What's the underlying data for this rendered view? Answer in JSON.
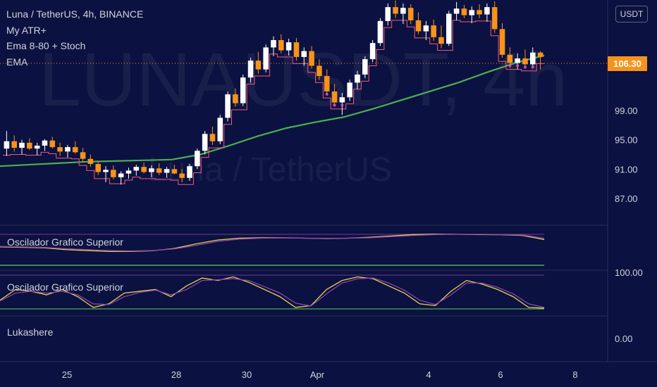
{
  "header": {
    "symbol_line": "Luna / TetherUS, 4h, BINANCE",
    "indicators": [
      "My ATR+",
      "Ema 8-80 + Stoch",
      "EMA"
    ],
    "currency": "USDT"
  },
  "watermark": {
    "ticker": "LUNAUSDT, 4h",
    "name": "Luna / TetherUS"
  },
  "price_tag": "106.30",
  "panes": {
    "osc1_label": "Oscilador Grafico Superior",
    "osc2_label": "Oscilador Grafico Superior",
    "pane3_label": "Lukashere"
  },
  "colors": {
    "background": "#0b1140",
    "bull": "#ffffff",
    "bear": "#f7931a",
    "ema": "#4caf50",
    "atr": "#f05a7e",
    "stoch_k": "#e8d44d",
    "stoch_d": "#8e44ad",
    "dots": "#c850c0"
  },
  "chart_data": [
    {
      "type": "candlestick",
      "title": "Luna / TetherUS, 4h, BINANCE",
      "x_ticks": [
        "25",
        "28",
        "30",
        "Apr",
        "4",
        "6",
        "8"
      ],
      "y_ticks": [
        "87.00",
        "91.00",
        "95.00",
        "99.00",
        "106.30"
      ],
      "ylim": [
        84,
        114
      ],
      "last_price": 106.3,
      "series": [
        {
          "name": "My ATR+",
          "kind": "stepped line"
        },
        {
          "name": "EMA",
          "kind": "line",
          "values": [
            91.4,
            91.6,
            91.8,
            92.0,
            92.1,
            92.2,
            92.3,
            93.0,
            94.2,
            95.5,
            96.6,
            97.4,
            98.1,
            99.2,
            100.4,
            101.6,
            102.8,
            104.2,
            105.5,
            106.5
          ]
        }
      ],
      "candles_ohlc": [
        [
          93.8,
          96.2,
          92.8,
          94.8
        ],
        [
          94.8,
          95.6,
          93.4,
          93.9
        ],
        [
          93.9,
          95.0,
          93.0,
          94.6
        ],
        [
          94.6,
          95.2,
          93.6,
          93.8
        ],
        [
          93.8,
          94.6,
          92.9,
          94.2
        ],
        [
          94.2,
          95.1,
          93.5,
          94.9
        ],
        [
          94.9,
          95.4,
          93.8,
          94.0
        ],
        [
          94.0,
          94.6,
          92.8,
          93.4
        ],
        [
          93.4,
          94.3,
          92.6,
          94.0
        ],
        [
          94.0,
          94.8,
          93.1,
          93.3
        ],
        [
          93.3,
          93.9,
          92.0,
          92.4
        ],
        [
          92.4,
          93.0,
          91.3,
          91.7
        ],
        [
          91.7,
          92.1,
          90.2,
          90.6
        ],
        [
          90.6,
          91.4,
          89.2,
          90.9
        ],
        [
          90.9,
          91.5,
          89.6,
          89.9
        ],
        [
          89.9,
          90.7,
          88.9,
          90.4
        ],
        [
          90.4,
          91.2,
          89.7,
          90.8
        ],
        [
          90.8,
          91.6,
          90.1,
          91.3
        ],
        [
          91.3,
          91.9,
          90.4,
          90.6
        ],
        [
          90.6,
          91.5,
          89.9,
          91.1
        ],
        [
          91.1,
          91.8,
          90.2,
          90.5
        ],
        [
          90.5,
          91.3,
          89.8,
          91.0
        ],
        [
          91.0,
          91.6,
          90.3,
          90.4
        ],
        [
          90.4,
          91.0,
          89.2,
          89.8
        ],
        [
          89.8,
          91.7,
          89.4,
          91.4
        ],
        [
          91.4,
          93.8,
          91.0,
          93.5
        ],
        [
          93.5,
          96.2,
          93.0,
          95.8
        ],
        [
          95.8,
          96.8,
          94.3,
          94.8
        ],
        [
          94.8,
          98.4,
          94.4,
          98.0
        ],
        [
          98.0,
          101.6,
          97.5,
          101.2
        ],
        [
          101.2,
          102.0,
          99.5,
          100.0
        ],
        [
          100.0,
          103.9,
          99.6,
          103.5
        ],
        [
          103.5,
          106.2,
          102.8,
          105.8
        ],
        [
          105.8,
          107.0,
          104.0,
          104.6
        ],
        [
          104.6,
          108.0,
          104.2,
          107.6
        ],
        [
          107.6,
          109.1,
          106.4,
          108.6
        ],
        [
          108.6,
          109.4,
          106.8,
          107.2
        ],
        [
          107.2,
          108.8,
          106.5,
          108.3
        ],
        [
          108.3,
          108.9,
          105.8,
          106.3
        ],
        [
          106.3,
          107.6,
          105.1,
          107.1
        ],
        [
          107.1,
          107.8,
          104.7,
          105.1
        ],
        [
          105.1,
          106.0,
          103.2,
          103.7
        ],
        [
          103.7,
          104.6,
          101.1,
          101.6
        ],
        [
          101.6,
          102.6,
          99.6,
          100.1
        ],
        [
          100.1,
          101.4,
          98.4,
          100.8
        ],
        [
          100.8,
          103.2,
          100.3,
          102.8
        ],
        [
          102.8,
          104.4,
          101.9,
          103.9
        ],
        [
          103.9,
          106.4,
          103.4,
          106.0
        ],
        [
          106.0,
          108.6,
          105.6,
          108.2
        ],
        [
          108.2,
          111.6,
          107.8,
          111.2
        ],
        [
          111.2,
          113.6,
          110.6,
          113.1
        ],
        [
          113.1,
          114.0,
          111.6,
          112.2
        ],
        [
          112.2,
          113.6,
          110.8,
          113.0
        ],
        [
          113.0,
          113.5,
          110.8,
          111.3
        ],
        [
          111.3,
          112.4,
          109.4,
          109.8
        ],
        [
          109.8,
          111.2,
          108.6,
          110.6
        ],
        [
          110.6,
          111.4,
          108.5,
          109.0
        ],
        [
          109.0,
          110.6,
          107.5,
          108.1
        ],
        [
          108.1,
          112.6,
          107.8,
          112.2
        ],
        [
          112.2,
          113.8,
          111.3,
          112.9
        ],
        [
          112.9,
          113.4,
          111.6,
          112.0
        ],
        [
          112.0,
          113.2,
          110.9,
          112.7
        ],
        [
          112.7,
          113.5,
          111.6,
          112.1
        ],
        [
          112.1,
          113.6,
          111.1,
          113.1
        ],
        [
          113.1,
          113.9,
          109.6,
          110.1
        ],
        [
          110.1,
          110.9,
          106.2,
          106.6
        ],
        [
          106.6,
          107.6,
          104.8,
          105.5
        ],
        [
          105.5,
          106.8,
          104.6,
          106.1
        ],
        [
          106.1,
          107.3,
          104.9,
          105.3
        ],
        [
          105.3,
          107.6,
          105.0,
          106.9
        ],
        [
          106.9,
          107.1,
          104.6,
          106.3
        ]
      ]
    },
    {
      "type": "line",
      "title": "Oscilador Grafico Superior",
      "series": [
        {
          "name": "k",
          "values": [
            0.42,
            0.4,
            0.38,
            0.3,
            0.26,
            0.22,
            0.22,
            0.25,
            0.35,
            0.55,
            0.72,
            0.8,
            0.82,
            0.82,
            0.8,
            0.78,
            0.8,
            0.84,
            0.9,
            0.96,
            0.98,
            0.97,
            0.96,
            0.95,
            0.92,
            0.74
          ]
        },
        {
          "name": "d",
          "values": [
            0.44,
            0.42,
            0.4,
            0.34,
            0.3,
            0.26,
            0.24,
            0.26,
            0.33,
            0.48,
            0.66,
            0.76,
            0.8,
            0.81,
            0.8,
            0.79,
            0.8,
            0.82,
            0.87,
            0.92,
            0.96,
            0.97,
            0.97,
            0.96,
            0.94,
            0.8
          ]
        }
      ]
    },
    {
      "type": "line",
      "title": "Oscilador Grafico Superior",
      "y_ticks": [
        "100.00"
      ],
      "ylim": [
        0,
        100
      ],
      "series": [
        {
          "name": "k",
          "values": [
            30,
            60,
            55,
            45,
            60,
            40,
            10,
            20,
            50,
            55,
            60,
            40,
            70,
            92,
            85,
            95,
            80,
            60,
            40,
            10,
            15,
            60,
            85,
            95,
            90,
            70,
            50,
            20,
            15,
            55,
            85,
            75,
            60,
            40,
            10,
            8
          ]
        },
        {
          "name": "d",
          "values": [
            28,
            50,
            55,
            50,
            55,
            45,
            20,
            18,
            40,
            52,
            58,
            45,
            60,
            85,
            87,
            90,
            85,
            68,
            50,
            22,
            14,
            48,
            78,
            90,
            92,
            78,
            58,
            30,
            18,
            45,
            78,
            78,
            66,
            48,
            20,
            10
          ]
        }
      ]
    },
    {
      "type": "line",
      "title": "Lukashere",
      "y_ticks": [
        "0.00"
      ]
    }
  ]
}
